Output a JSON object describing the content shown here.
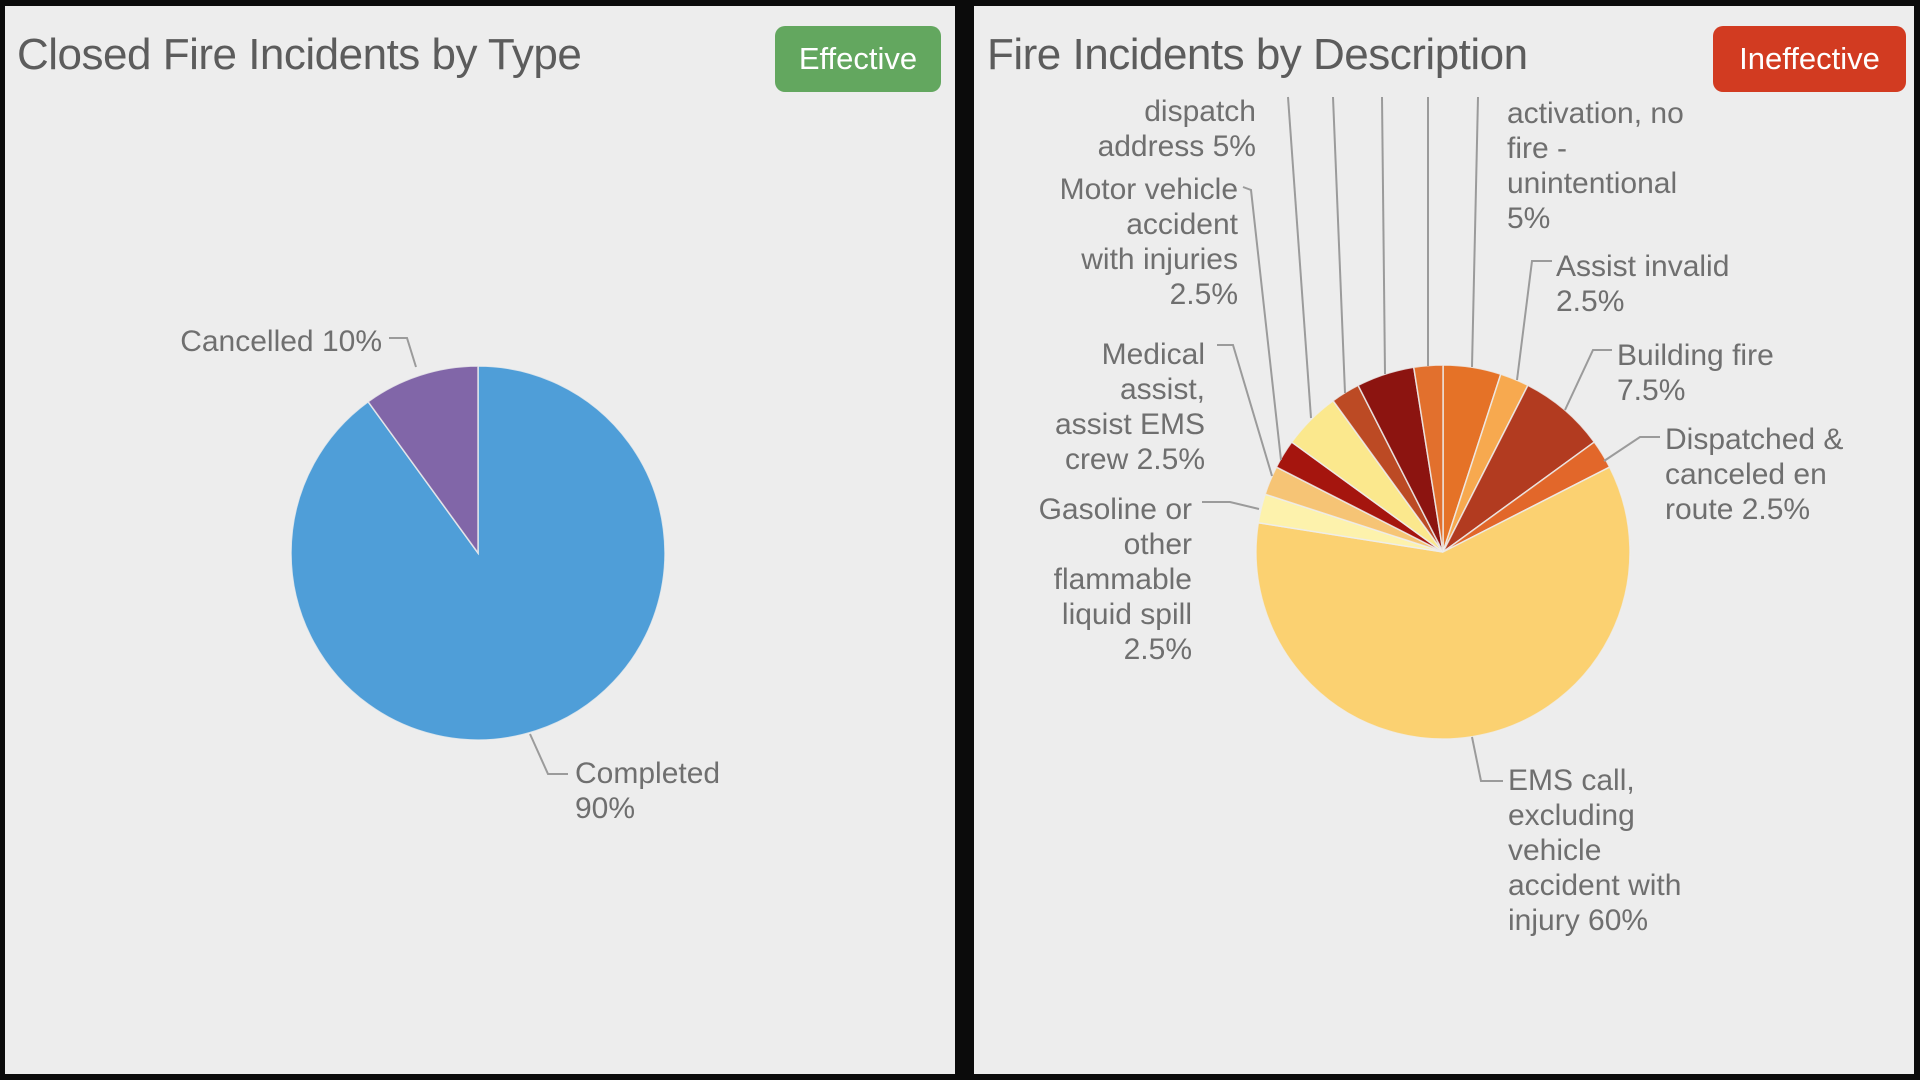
{
  "left_panel": {
    "title": "Closed Fire Incidents by Type",
    "badge": {
      "label": "Effective",
      "color": "#63A75F"
    },
    "labels": {
      "cancelled": "Cancelled 10%",
      "completed": "Completed\n90%"
    }
  },
  "right_panel": {
    "title": "Fire Incidents by Description",
    "badge": {
      "label": "Ineffective",
      "color": "#D23B21"
    },
    "labels": {
      "dispatch": "dispatch\naddress 5%",
      "motor": "Motor vehicle\naccident\nwith injuries\n2.5%",
      "medical": "Medical\nassist,\nassist EMS\ncrew 2.5%",
      "gasoline": "Gasoline or\nother\nflammable\nliquid spill\n2.5%",
      "activation": "activation, no\nfire -\nunintentional\n5%",
      "assist": "Assist invalid\n2.5%",
      "building": "Building fire\n7.5%",
      "dispatched": "Dispatched &\ncanceled en\nroute 2.5%",
      "ems": "EMS call,\nexcluding\nvehicle\naccident with\ninjury 60%"
    }
  },
  "chart_data": [
    {
      "type": "pie",
      "title": "Closed Fire Incidents by Type",
      "start_angle": "12 o'clock",
      "direction": "clockwise",
      "legend_position": "callout-labels",
      "slices": [
        {
          "label": "Completed",
          "pct": 90,
          "color": "#4F9ED8"
        },
        {
          "label": "Cancelled",
          "pct": 10,
          "color": "#8166A8"
        }
      ]
    },
    {
      "type": "pie",
      "title": "Fire Incidents by Description",
      "start_angle": "12 o'clock",
      "direction": "clockwise",
      "legend_position": "callout-labels",
      "slices": [
        {
          "label": "activation, no fire - unintentional",
          "pct": 5,
          "color": "#E57227"
        },
        {
          "label": "Assist invalid",
          "pct": 2.5,
          "color": "#F7A94F"
        },
        {
          "label": "Building fire",
          "pct": 7.5,
          "color": "#B23B20"
        },
        {
          "label": "Dispatched & canceled en route",
          "pct": 2.5,
          "color": "#E2672A"
        },
        {
          "label": "EMS call, excluding vehicle accident with injury",
          "pct": 60,
          "color": "#FBD171"
        },
        {
          "label": "Gasoline or other flammable liquid spill",
          "pct": 2.5,
          "color": "#FDF2AC"
        },
        {
          "label": "Medical assist, assist EMS crew",
          "pct": 2.5,
          "color": "#F6C475"
        },
        {
          "label": "Motor vehicle accident with injuries",
          "pct": 2.5,
          "color": "#A5150E"
        },
        {
          "label": "dispatch address",
          "pct": 5,
          "color": "#FBE88D"
        },
        {
          "label": "",
          "pct": 2.5,
          "color": "#BC4A24"
        },
        {
          "label": "",
          "pct": 5,
          "color": "#8C1410"
        },
        {
          "label": "",
          "pct": 2.5,
          "color": "#E2702D"
        }
      ]
    }
  ],
  "colors": {
    "panel_background": "#EDEDED",
    "frame": "#0B0B0B",
    "title_text": "#5C5C5C",
    "label_text": "#6F6F6F",
    "leader_line": "#9B9B9B"
  }
}
